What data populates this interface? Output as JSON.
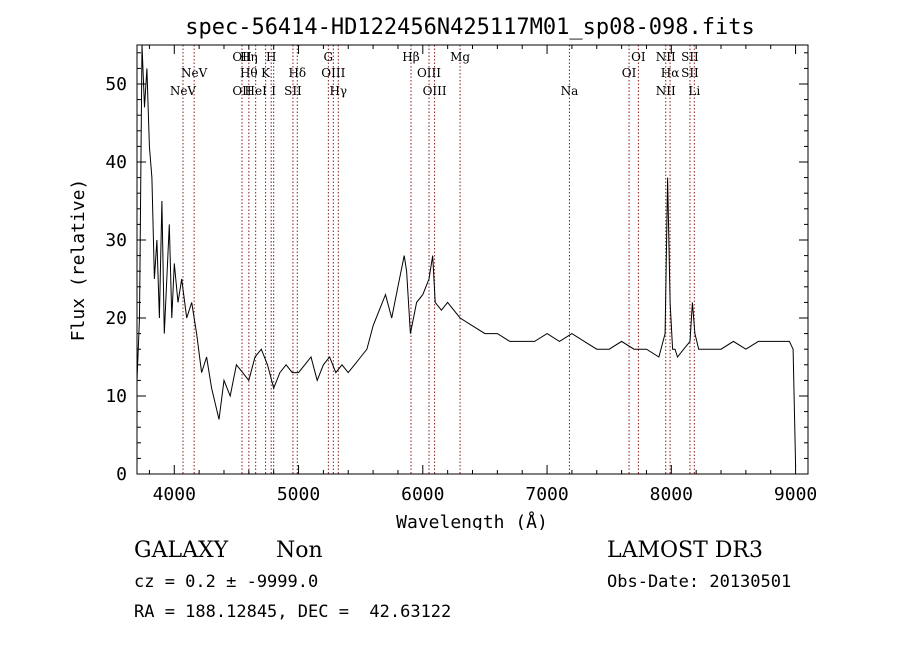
{
  "chart_data": {
    "type": "line",
    "title": "spec-56414-HD122456N425117M01_sp08-098.fits",
    "xlabel": "Wavelength (Å)",
    "ylabel": "Flux (relative)",
    "xlim": [
      3700,
      9100
    ],
    "ylim": [
      0,
      55
    ],
    "x_ticks": [
      4000,
      5000,
      6000,
      7000,
      8000,
      9000
    ],
    "y_ticks": [
      0,
      10,
      20,
      30,
      40,
      50
    ],
    "grid": false,
    "line_color": "#000000",
    "marker_color": "#8b1a1a",
    "series": [
      {
        "x": [
          3700,
          3720,
          3740,
          3760,
          3780,
          3800,
          3820,
          3840,
          3860,
          3880,
          3900,
          3920,
          3940,
          3960,
          3980,
          4000,
          4030,
          4060,
          4100,
          4140,
          4180,
          4220,
          4260,
          4300,
          4330,
          4360,
          4400,
          4450,
          4500,
          4550,
          4600,
          4650,
          4700,
          4750,
          4800,
          4850,
          4900,
          4950,
          5000,
          5050,
          5100,
          5150,
          5200,
          5250,
          5300,
          5350,
          5400,
          5450,
          5500,
          5550,
          5600,
          5650,
          5700,
          5750,
          5800,
          5850,
          5870,
          5900,
          5950,
          6000,
          6050,
          6080,
          6100,
          6150,
          6200,
          6300,
          6400,
          6500,
          6600,
          6700,
          6800,
          6900,
          7000,
          7100,
          7200,
          7300,
          7400,
          7500,
          7600,
          7700,
          7800,
          7900,
          7950,
          7970,
          7990,
          8010,
          8030,
          8050,
          8100,
          8150,
          8170,
          8190,
          8220,
          8300,
          8400,
          8500,
          8600,
          8700,
          8800,
          8900,
          8950,
          8980,
          9000
        ],
        "values": [
          12,
          20,
          55,
          47,
          52,
          42,
          38,
          25,
          30,
          20,
          35,
          18,
          25,
          32,
          20,
          27,
          22,
          25,
          20,
          22,
          18,
          13,
          15,
          11,
          9,
          7,
          12,
          10,
          14,
          13,
          12,
          15,
          16,
          14,
          11,
          13,
          14,
          13,
          13,
          14,
          15,
          12,
          14,
          15,
          13,
          14,
          13,
          14,
          15,
          16,
          19,
          21,
          23,
          20,
          24,
          28,
          26,
          18,
          22,
          23,
          25,
          28,
          22,
          21,
          22,
          20,
          19,
          18,
          18,
          17,
          17,
          17,
          18,
          17,
          18,
          17,
          16,
          16,
          17,
          16,
          16,
          15,
          18,
          38,
          22,
          16,
          16,
          15,
          16,
          17,
          22,
          18,
          16,
          16,
          16,
          17,
          16,
          17,
          17,
          17,
          17,
          16,
          1
        ]
      }
    ],
    "lines": [
      {
        "x": 4070,
        "labels": [
          {
            "text": "NeV",
            "row": 3
          }
        ]
      },
      {
        "x": 4160,
        "labels": [
          {
            "text": "NeV",
            "row": 2
          }
        ]
      },
      {
        "x": 4545,
        "labels": [
          {
            "text": "OII",
            "row": 1
          },
          {
            "text": "OII",
            "row": 3
          }
        ]
      },
      {
        "x": 4600,
        "labels": [
          {
            "text": "Hη",
            "row": 1
          },
          {
            "text": "Hθ",
            "row": 2
          }
        ]
      },
      {
        "x": 4655,
        "labels": [
          {
            "text": "HeI",
            "row": 3
          }
        ]
      },
      {
        "x": 4735,
        "labels": [
          {
            "text": "K",
            "row": 2
          }
        ]
      },
      {
        "x": 4780,
        "labels": [
          {
            "text": "H",
            "row": 1
          }
        ]
      },
      {
        "x": 4800,
        "labels": [
          {
            "text": "I",
            "row": 3
          }
        ]
      },
      {
        "x": 4955,
        "labels": [
          {
            "text": "SII",
            "row": 3
          }
        ]
      },
      {
        "x": 4990,
        "labels": [
          {
            "text": "Hδ",
            "row": 2
          }
        ]
      },
      {
        "x": 5240,
        "labels": [
          {
            "text": "G",
            "row": 1
          }
        ]
      },
      {
        "x": 5280,
        "labels": [
          {
            "text": "OIII",
            "row": 2
          }
        ]
      },
      {
        "x": 5320,
        "labels": [
          {
            "text": "Hγ",
            "row": 3
          }
        ]
      },
      {
        "x": 5905,
        "labels": [
          {
            "text": "Hβ",
            "row": 1
          }
        ]
      },
      {
        "x": 6050,
        "labels": [
          {
            "text": "OIII",
            "row": 2
          }
        ]
      },
      {
        "x": 6095,
        "labels": [
          {
            "text": "OIII",
            "row": 3
          }
        ]
      },
      {
        "x": 6300,
        "labels": [
          {
            "text": "Mg",
            "row": 1
          }
        ]
      },
      {
        "x": 7180,
        "labels": [
          {
            "text": "Na",
            "row": 3
          }
        ]
      },
      {
        "x": 7660,
        "labels": [
          {
            "text": "OI",
            "row": 2
          }
        ]
      },
      {
        "x": 7735,
        "labels": [
          {
            "text": "OI",
            "row": 1
          }
        ]
      },
      {
        "x": 7955,
        "labels": [
          {
            "text": "NII",
            "row": 1
          },
          {
            "text": "NII",
            "row": 3
          }
        ]
      },
      {
        "x": 7990,
        "labels": [
          {
            "text": "Hα",
            "row": 2
          }
        ]
      },
      {
        "x": 8150,
        "labels": [
          {
            "text": "SII",
            "row": 1
          },
          {
            "text": "SII",
            "row": 2
          }
        ]
      },
      {
        "x": 8185,
        "labels": [
          {
            "text": "Li",
            "row": 3
          }
        ]
      }
    ]
  },
  "info": {
    "class": "GALAXY",
    "subclass": "Non",
    "survey": "LAMOST DR3",
    "cz": "cz = 0.2 ± -9999.0",
    "obs_date": "Obs-Date: 20130501",
    "coords": "RA = 188.12845, DEC =  42.63122"
  }
}
